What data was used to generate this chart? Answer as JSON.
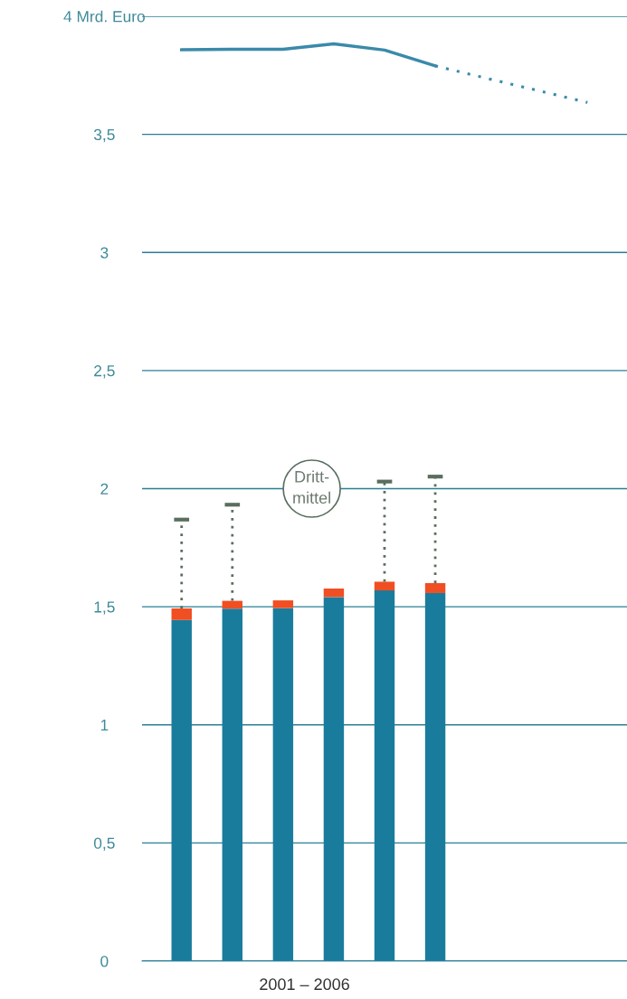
{
  "chart_data": {
    "type": "bar",
    "stacked": true,
    "xlabel": "2001 – 2006",
    "categories": [
      null,
      null,
      null,
      null,
      null,
      null,
      null,
      null,
      null
    ],
    "series": [
      {
        "color": "#1a7c9c",
        "values": [
          1.444,
          1.492,
          1.494,
          1.541,
          1.569,
          1.558,
          null,
          null,
          null
        ]
      },
      {
        "color": "#f04e23",
        "values": [
          0.049,
          0.033,
          0.033,
          0.036,
          0.037,
          0.042,
          null,
          null,
          null
        ],
        "errors": [
          [
            1.493,
            1.869
          ],
          [
            1.525,
            1.932
          ],
          null,
          null,
          [
            1.606,
            2.03
          ],
          [
            1.6,
            2.051
          ],
          null,
          null,
          null
        ]
      },
      {
        "type": "line",
        "color": "#3a8aaa",
        "line_style": "solid",
        "values": [
          3.858,
          3.86,
          3.86,
          3.883,
          3.857,
          3.79,
          null,
          null,
          null
        ]
      },
      {
        "type": "line",
        "color": "#3a8aaa",
        "line_style": "dotted",
        "values": [
          null,
          null,
          null,
          null,
          null,
          3.79,
          3.738,
          3.687,
          3.635
        ]
      }
    ],
    "annotations": [
      "Dritt-\nmittel"
    ],
    "ylim": [
      0,
      4
    ],
    "yticks": [
      0,
      {
        "value": 0.5,
        "label": "0,5"
      },
      1,
      {
        "value": 1.5,
        "label": "1,5"
      },
      2,
      {
        "value": 2.5,
        "label": "2,5"
      },
      3,
      {
        "value": 3.5,
        "label": "3,5"
      },
      {
        "value": 4,
        "label": "4 Mrd. Euro"
      }
    ],
    "grid": "y",
    "legend": false,
    "tick_labels": "y"
  }
}
